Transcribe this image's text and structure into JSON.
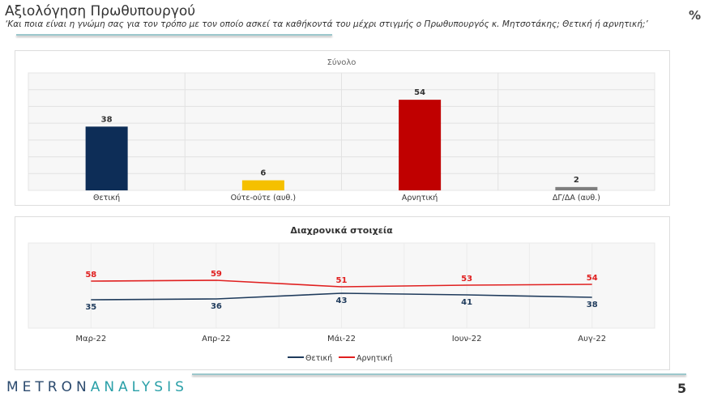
{
  "header": {
    "title": "Αξιολόγηση Πρωθυπουργού",
    "question": "‘Και ποια είναι η γνώμη σας για τον τρόπο με τον οποίο ασκεί τα καθήκοντά του μέχρι στιγμής ο Πρωθυπουργός κ. Μητσοτάκης; Θετική ή αρνητική;’",
    "unit": "%"
  },
  "footer": {
    "logo_part1": "METRON",
    "logo_part2": "ANALYSIS",
    "page": "5"
  },
  "chart_data": [
    {
      "type": "bar",
      "title": "Σύνολο",
      "categories": [
        "Θετική",
        "Ούτε-ούτε (αυθ.)",
        "Αρνητική",
        "ΔΓ/ΔΑ (αυθ.)"
      ],
      "values": [
        38,
        6,
        54,
        2
      ],
      "colors": [
        "#0d2d57",
        "#f5c000",
        "#c00000",
        "#7f7f7f"
      ],
      "ylim": [
        0,
        70
      ],
      "grid": true
    },
    {
      "type": "line",
      "title": "Διαχρονικά στοιχεία",
      "categories": [
        "Μαρ-22",
        "Απρ-22",
        "Μάι-22",
        "Ιουν-22",
        "Αυγ-22"
      ],
      "series": [
        {
          "name": "Θετική",
          "values": [
            35,
            36,
            43,
            41,
            38
          ],
          "color": "#1f3b5c"
        },
        {
          "name": "Αρνητική",
          "values": [
            58,
            59,
            51,
            53,
            54
          ],
          "color": "#e02020"
        }
      ],
      "ylim": [
        0,
        105
      ],
      "legend": "bottom",
      "grid": true
    }
  ]
}
